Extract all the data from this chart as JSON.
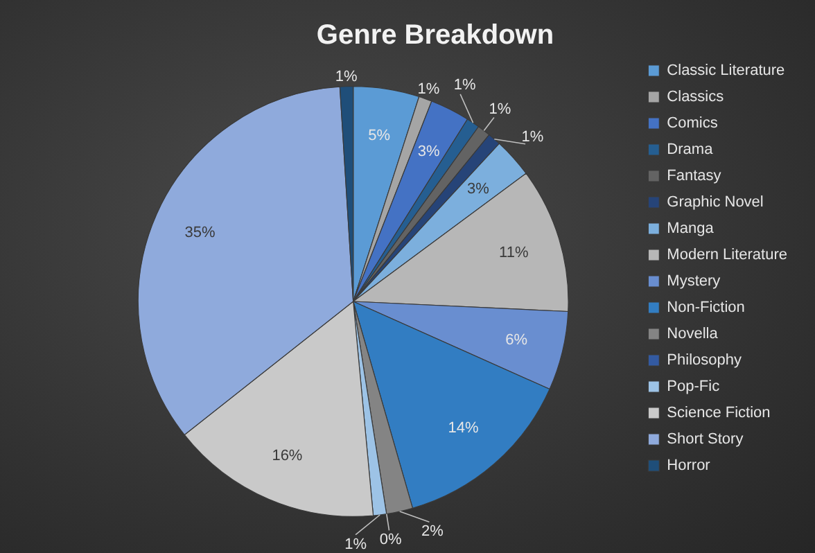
{
  "chart_data": {
    "type": "pie",
    "title": "Genre Breakdown",
    "categories": [
      "Classic Literature",
      "Classics",
      "Comics",
      "Drama",
      "Fantasy",
      "Graphic Novel",
      "Manga",
      "Modern Literature",
      "Mystery",
      "Non-Fiction",
      "Novella",
      "Philosophy",
      "Pop-Fic",
      "Science Fiction",
      "Short Story",
      "Horror"
    ],
    "values": [
      5,
      1,
      3,
      1,
      1,
      1,
      3,
      11,
      6,
      14,
      2,
      0,
      1,
      16,
      35,
      1
    ],
    "value_labels": [
      "5%",
      "1%",
      "3%",
      "1%",
      "1%",
      "1%",
      "3%",
      "11%",
      "6%",
      "14%",
      "2%",
      "0%",
      "1%",
      "16%",
      "35%",
      "1%"
    ],
    "colors": [
      "#5b9bd5",
      "#a5a5a5",
      "#4472c4",
      "#255e91",
      "#636363",
      "#264478",
      "#7cafdd",
      "#b7b7b7",
      "#698ed0",
      "#327dc2",
      "#848484",
      "#335aa1",
      "#9dc3e6",
      "#c9c9c9",
      "#8faadc",
      "#1f4e79"
    ],
    "legend": "right"
  }
}
